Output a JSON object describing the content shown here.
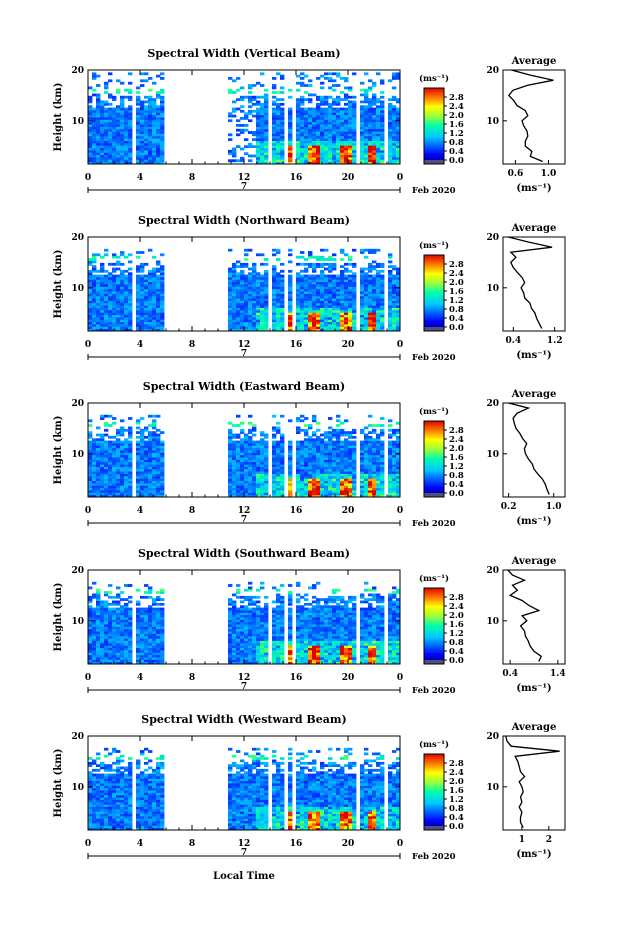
{
  "page": {
    "shared_xlabel": "Local Time"
  },
  "chart_data": [
    {
      "type": "heatmap",
      "title": "Spectral Width (Vertical Beam)",
      "ylabel": "Height (km)",
      "x_ticks": [
        "0",
        "4",
        "8",
        "12",
        "16",
        "20",
        "0"
      ],
      "y_ticks": [
        "10",
        "20"
      ],
      "date_center": "7",
      "date_label": "Feb 2020",
      "xlim": [
        0,
        24
      ],
      "ylim": [
        1.5,
        20
      ],
      "colorbar": {
        "unit": "(ms⁻¹)",
        "ticks": [
          "0.0",
          "0.4",
          "0.8",
          "1.2",
          "1.6",
          "2.0",
          "2.4",
          "2.8"
        ],
        "range": [
          0,
          3.2
        ]
      },
      "average": {
        "title": "Average",
        "xlabel": "(ms⁻¹)",
        "x_ticks": [
          "0.6",
          "1.0"
        ],
        "xlim": [
          0.45,
          1.2
        ],
        "y": [
          2,
          3,
          4,
          5,
          6,
          7,
          8,
          9,
          10,
          11,
          12,
          13,
          14,
          15,
          16,
          17,
          18,
          19,
          20
        ],
        "x": [
          0.93,
          0.78,
          0.8,
          0.72,
          0.72,
          0.75,
          0.74,
          0.7,
          0.68,
          0.75,
          0.72,
          0.62,
          0.58,
          0.52,
          0.57,
          0.75,
          1.06,
          0.78,
          0.55
        ]
      }
    },
    {
      "type": "heatmap",
      "title": "Spectral Width (Northward Beam)",
      "ylabel": "Height (km)",
      "x_ticks": [
        "0",
        "4",
        "8",
        "12",
        "16",
        "20",
        "0"
      ],
      "y_ticks": [
        "10",
        "20"
      ],
      "date_center": "7",
      "date_label": "Feb 2020",
      "xlim": [
        0,
        24
      ],
      "ylim": [
        1.5,
        20
      ],
      "colorbar": {
        "unit": "(ms⁻¹)",
        "ticks": [
          "0.0",
          "0.4",
          "0.8",
          "1.2",
          "1.6",
          "2.0",
          "2.4",
          "2.8"
        ],
        "range": [
          0,
          3.2
        ]
      },
      "average": {
        "title": "Average",
        "xlabel": "(ms⁻¹)",
        "x_ticks": [
          "0.4",
          "1.2"
        ],
        "xlim": [
          0.2,
          1.4
        ],
        "y": [
          2,
          3,
          4,
          5,
          6,
          7,
          8,
          9,
          10,
          11,
          12,
          13,
          14,
          15,
          16,
          17,
          18,
          19,
          20
        ],
        "x": [
          0.95,
          0.9,
          0.85,
          0.82,
          0.75,
          0.72,
          0.62,
          0.6,
          0.55,
          0.62,
          0.57,
          0.48,
          0.4,
          0.35,
          0.45,
          0.35,
          1.15,
          0.7,
          0.3
        ]
      }
    },
    {
      "type": "heatmap",
      "title": "Spectral Width (Eastward Beam)",
      "ylabel": "Height (km)",
      "x_ticks": [
        "0",
        "4",
        "8",
        "12",
        "16",
        "20",
        "0"
      ],
      "y_ticks": [
        "10",
        "20"
      ],
      "date_center": "7",
      "date_label": "Feb 2020",
      "xlim": [
        0,
        24
      ],
      "ylim": [
        1.5,
        20
      ],
      "colorbar": {
        "unit": "(ms⁻¹)",
        "ticks": [
          "0.0",
          "0.4",
          "0.8",
          "1.2",
          "1.6",
          "2.0",
          "2.4",
          "2.8"
        ],
        "range": [
          0,
          3.2
        ]
      },
      "average": {
        "title": "Average",
        "xlabel": "(ms⁻¹)",
        "x_ticks": [
          "0.2",
          "1.0"
        ],
        "xlim": [
          0.1,
          1.2
        ],
        "y": [
          2,
          3,
          4,
          5,
          6,
          7,
          8,
          9,
          10,
          11,
          12,
          13,
          14,
          15,
          16,
          17,
          18,
          19,
          20
        ],
        "x": [
          0.92,
          0.88,
          0.85,
          0.8,
          0.72,
          0.65,
          0.62,
          0.55,
          0.5,
          0.48,
          0.52,
          0.45,
          0.4,
          0.33,
          0.3,
          0.28,
          0.35,
          0.55,
          0.2
        ]
      }
    },
    {
      "type": "heatmap",
      "title": "Spectral Width (Southward Beam)",
      "ylabel": "Height (km)",
      "x_ticks": [
        "0",
        "4",
        "8",
        "12",
        "16",
        "20",
        "0"
      ],
      "y_ticks": [
        "10",
        "20"
      ],
      "date_center": "7",
      "date_label": "Feb 2020",
      "xlim": [
        0,
        24
      ],
      "ylim": [
        1.5,
        20
      ],
      "colorbar": {
        "unit": "(ms⁻¹)",
        "ticks": [
          "0.0",
          "0.4",
          "0.8",
          "1.2",
          "1.6",
          "2.0",
          "2.4",
          "2.8"
        ],
        "range": [
          0,
          3.2
        ]
      },
      "average": {
        "title": "Average",
        "xlabel": "(ms⁻¹)",
        "x_ticks": [
          "0.4",
          "1.4"
        ],
        "xlim": [
          0.25,
          1.55
        ],
        "y": [
          2,
          3,
          4,
          5,
          6,
          7,
          8,
          9,
          10,
          11,
          12,
          13,
          14,
          15,
          16,
          17,
          18,
          19,
          20
        ],
        "x": [
          1.0,
          1.05,
          0.9,
          0.82,
          0.78,
          0.72,
          0.7,
          0.62,
          0.75,
          0.65,
          1.0,
          0.8,
          0.65,
          0.4,
          0.55,
          0.45,
          0.7,
          0.45,
          0.35
        ]
      }
    },
    {
      "type": "heatmap",
      "title": "Spectral Width (Westward Beam)",
      "ylabel": "Height (km)",
      "x_ticks": [
        "0",
        "4",
        "8",
        "12",
        "16",
        "20",
        "0"
      ],
      "y_ticks": [
        "10",
        "20"
      ],
      "date_center": "7",
      "date_label": "Feb 2020",
      "xlim": [
        0,
        24
      ],
      "ylim": [
        1.5,
        20
      ],
      "colorbar": {
        "unit": "(ms⁻¹)",
        "ticks": [
          "0.0",
          "0.4",
          "0.8",
          "1.2",
          "1.6",
          "2.0",
          "2.4",
          "2.8"
        ],
        "range": [
          0,
          3.2
        ]
      },
      "average": {
        "title": "Average",
        "xlabel": "(ms⁻¹)",
        "x_ticks": [
          "1",
          "2"
        ],
        "xlim": [
          0.3,
          2.6
        ],
        "y": [
          2,
          3,
          4,
          5,
          6,
          7,
          8,
          9,
          10,
          11,
          12,
          13,
          14,
          15,
          16,
          17,
          18,
          19,
          20
        ],
        "x": [
          1.05,
          0.95,
          0.95,
          1.0,
          0.9,
          1.0,
          0.95,
          1.05,
          1.0,
          0.9,
          1.1,
          0.95,
          0.9,
          0.85,
          0.75,
          2.4,
          0.6,
          0.45,
          0.4
        ]
      }
    }
  ]
}
